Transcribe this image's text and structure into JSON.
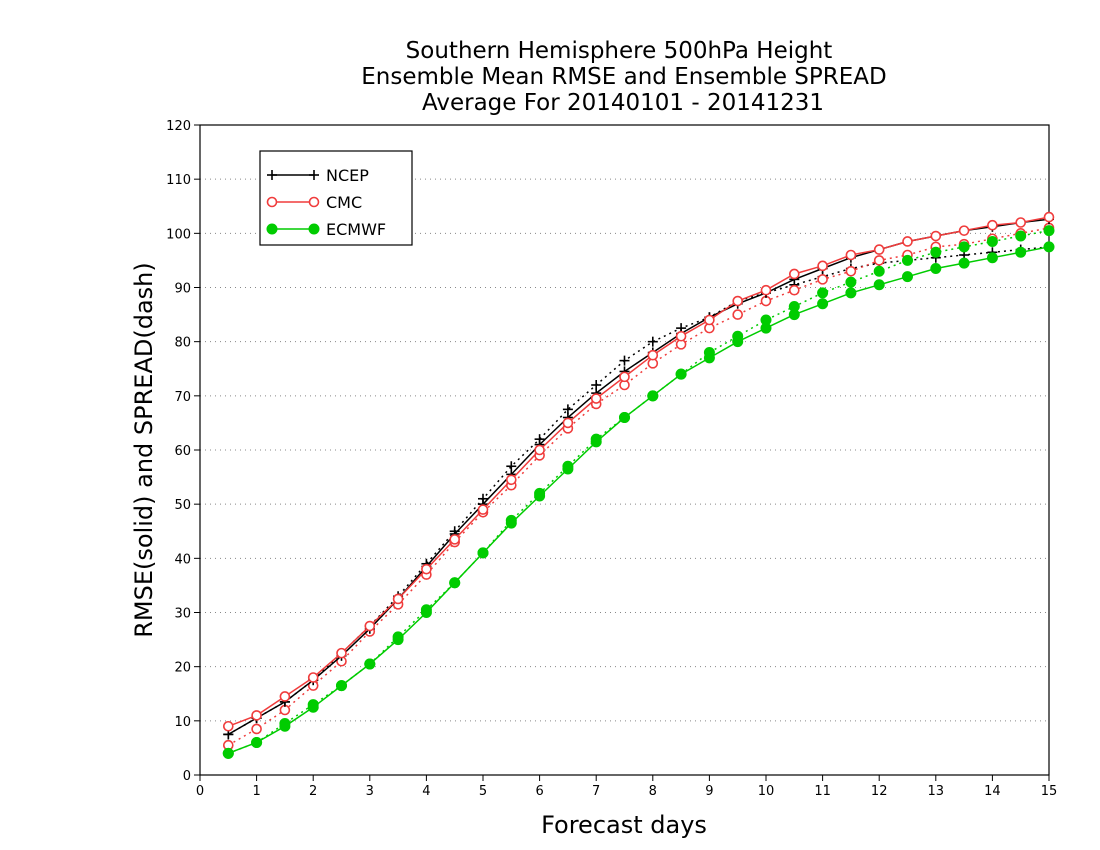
{
  "chart_data": {
    "type": "line",
    "title": [
      "Southern Hemisphere 500hPa Height",
      "Ensemble Mean RMSE and Ensemble SPREAD",
      "Average For 20140101 - 20141231"
    ],
    "xlabel": "Forecast days",
    "ylabel": "RMSE(solid) and SPREAD(dash)",
    "xlim": [
      0,
      15
    ],
    "ylim": [
      0,
      120
    ],
    "xticks": [
      0,
      1,
      2,
      3,
      4,
      5,
      6,
      7,
      8,
      9,
      10,
      11,
      12,
      13,
      14,
      15
    ],
    "yticks": [
      0,
      10,
      20,
      30,
      40,
      50,
      60,
      70,
      80,
      90,
      100,
      110,
      120
    ],
    "grid": true,
    "legend_position": "top-left",
    "x": [
      0.5,
      1,
      1.5,
      2,
      2.5,
      3,
      3.5,
      4,
      4.5,
      5,
      5.5,
      6,
      6.5,
      7,
      7.5,
      8,
      8.5,
      9,
      9.5,
      10,
      10.5,
      11,
      11.5,
      12,
      12.5,
      13,
      13.5,
      14,
      14.5,
      15
    ],
    "series": [
      {
        "name": "NCEP",
        "metric": "RMSE",
        "color": "#000000",
        "dash": false,
        "marker": "plus",
        "values": [
          7.5,
          10.5,
          13.5,
          17.5,
          22.0,
          27.0,
          32.5,
          38.5,
          44.5,
          50.0,
          55.5,
          61.0,
          66.0,
          70.5,
          74.5,
          78.0,
          81.5,
          84.5,
          87.0,
          89.0,
          91.5,
          93.5,
          95.5,
          97.0,
          98.5,
          99.5,
          100.5,
          101.2,
          102.0,
          102.6
        ]
      },
      {
        "name": "NCEP",
        "metric": "SPREAD",
        "color": "#000000",
        "dash": true,
        "marker": "plus",
        "values": [
          7.5,
          10.5,
          13.5,
          17.5,
          22.5,
          27.5,
          33.0,
          39.0,
          45.0,
          51.0,
          57.0,
          62.0,
          67.5,
          72.0,
          76.5,
          80.0,
          82.5,
          84.5,
          87.5,
          89.0,
          90.5,
          92.0,
          93.5,
          94.5,
          95.0,
          95.5,
          96.0,
          96.5,
          97.0,
          97.5
        ]
      },
      {
        "name": "CMC",
        "metric": "RMSE",
        "color": "#f03c3c",
        "dash": false,
        "marker": "circle",
        "values": [
          9.0,
          11.0,
          14.5,
          18.0,
          22.5,
          27.5,
          32.5,
          38.0,
          43.5,
          49.0,
          54.5,
          60.0,
          65.0,
          69.5,
          73.5,
          77.5,
          81.0,
          84.0,
          87.5,
          89.5,
          92.5,
          94.0,
          96.0,
          97.0,
          98.5,
          99.5,
          100.5,
          101.5,
          102.0,
          103.0
        ]
      },
      {
        "name": "CMC",
        "metric": "SPREAD",
        "color": "#f03c3c",
        "dash": true,
        "marker": "circle",
        "values": [
          5.5,
          8.5,
          12.0,
          16.5,
          21.0,
          26.5,
          31.5,
          37.0,
          43.0,
          48.5,
          53.5,
          59.0,
          64.0,
          68.5,
          72.0,
          76.0,
          79.5,
          82.5,
          85.0,
          87.5,
          89.5,
          91.5,
          93.0,
          95.0,
          96.0,
          97.5,
          98.0,
          99.0,
          100.0,
          101.0
        ]
      },
      {
        "name": "ECMWF",
        "metric": "RMSE",
        "color": "#00cc00",
        "dash": false,
        "marker": "filled-circle",
        "values": [
          4.0,
          6.0,
          9.0,
          12.5,
          16.5,
          20.5,
          25.0,
          30.0,
          35.5,
          41.0,
          46.5,
          51.5,
          56.5,
          61.5,
          66.0,
          70.0,
          74.0,
          77.0,
          80.0,
          82.5,
          85.0,
          87.0,
          89.0,
          90.5,
          92.0,
          93.5,
          94.5,
          95.5,
          96.5,
          97.5
        ]
      },
      {
        "name": "ECMWF",
        "metric": "SPREAD",
        "color": "#00cc00",
        "dash": true,
        "marker": "filled-circle",
        "values": [
          4.0,
          6.0,
          9.5,
          13.0,
          16.5,
          20.5,
          25.5,
          30.5,
          35.5,
          41.0,
          47.0,
          52.0,
          57.0,
          62.0,
          66.0,
          70.0,
          74.0,
          78.0,
          81.0,
          84.0,
          86.5,
          89.0,
          91.0,
          93.0,
          95.0,
          96.5,
          97.5,
          98.5,
          99.5,
          100.5
        ]
      }
    ]
  }
}
